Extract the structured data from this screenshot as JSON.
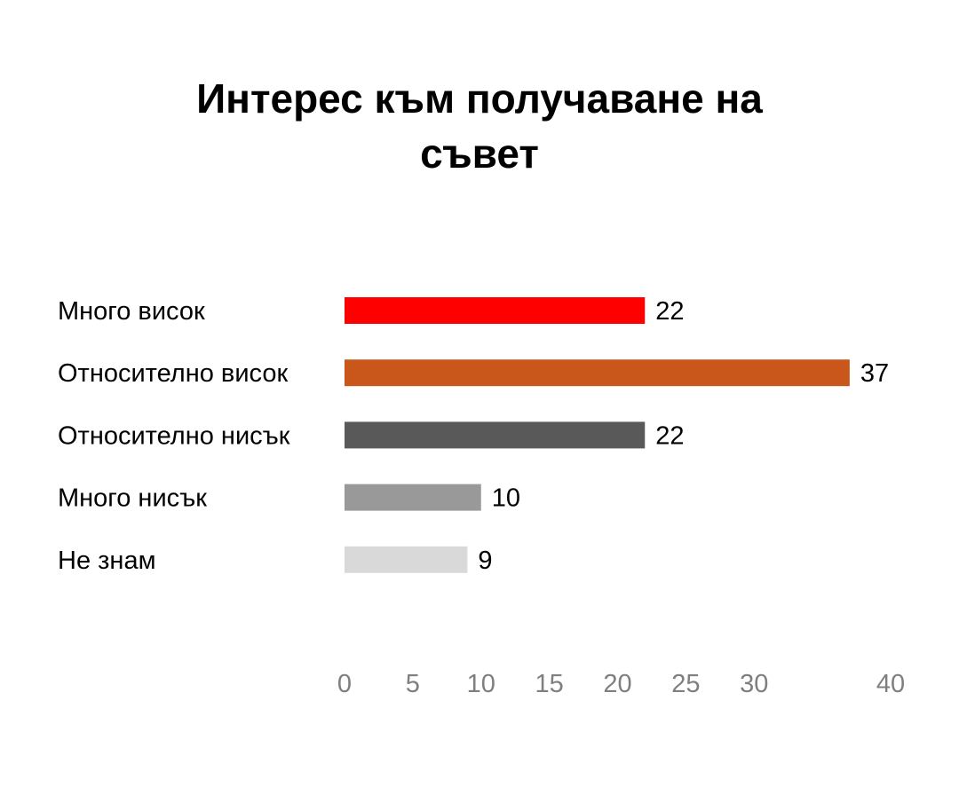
{
  "chart_data": {
    "type": "bar",
    "orientation": "horizontal",
    "title_lines": [
      "Интерес към получаване на",
      "съвет"
    ],
    "categories": [
      "Много висок",
      "Относително висок",
      "Относително нисък",
      "Много нисък",
      "Не знам"
    ],
    "values": [
      22,
      37,
      22,
      10,
      9
    ],
    "colors": [
      "#ff0000",
      "#c9571c",
      "#595959",
      "#999999",
      "#d9d9d9"
    ],
    "xlim": [
      0,
      40
    ],
    "xticks": [
      0,
      5,
      10,
      15,
      20,
      25,
      30,
      35,
      40
    ],
    "xtick_labels": [
      "0",
      "5",
      "10",
      "15",
      "20",
      "25",
      "30",
      "",
      "40"
    ],
    "grid": false,
    "legend": "none"
  }
}
